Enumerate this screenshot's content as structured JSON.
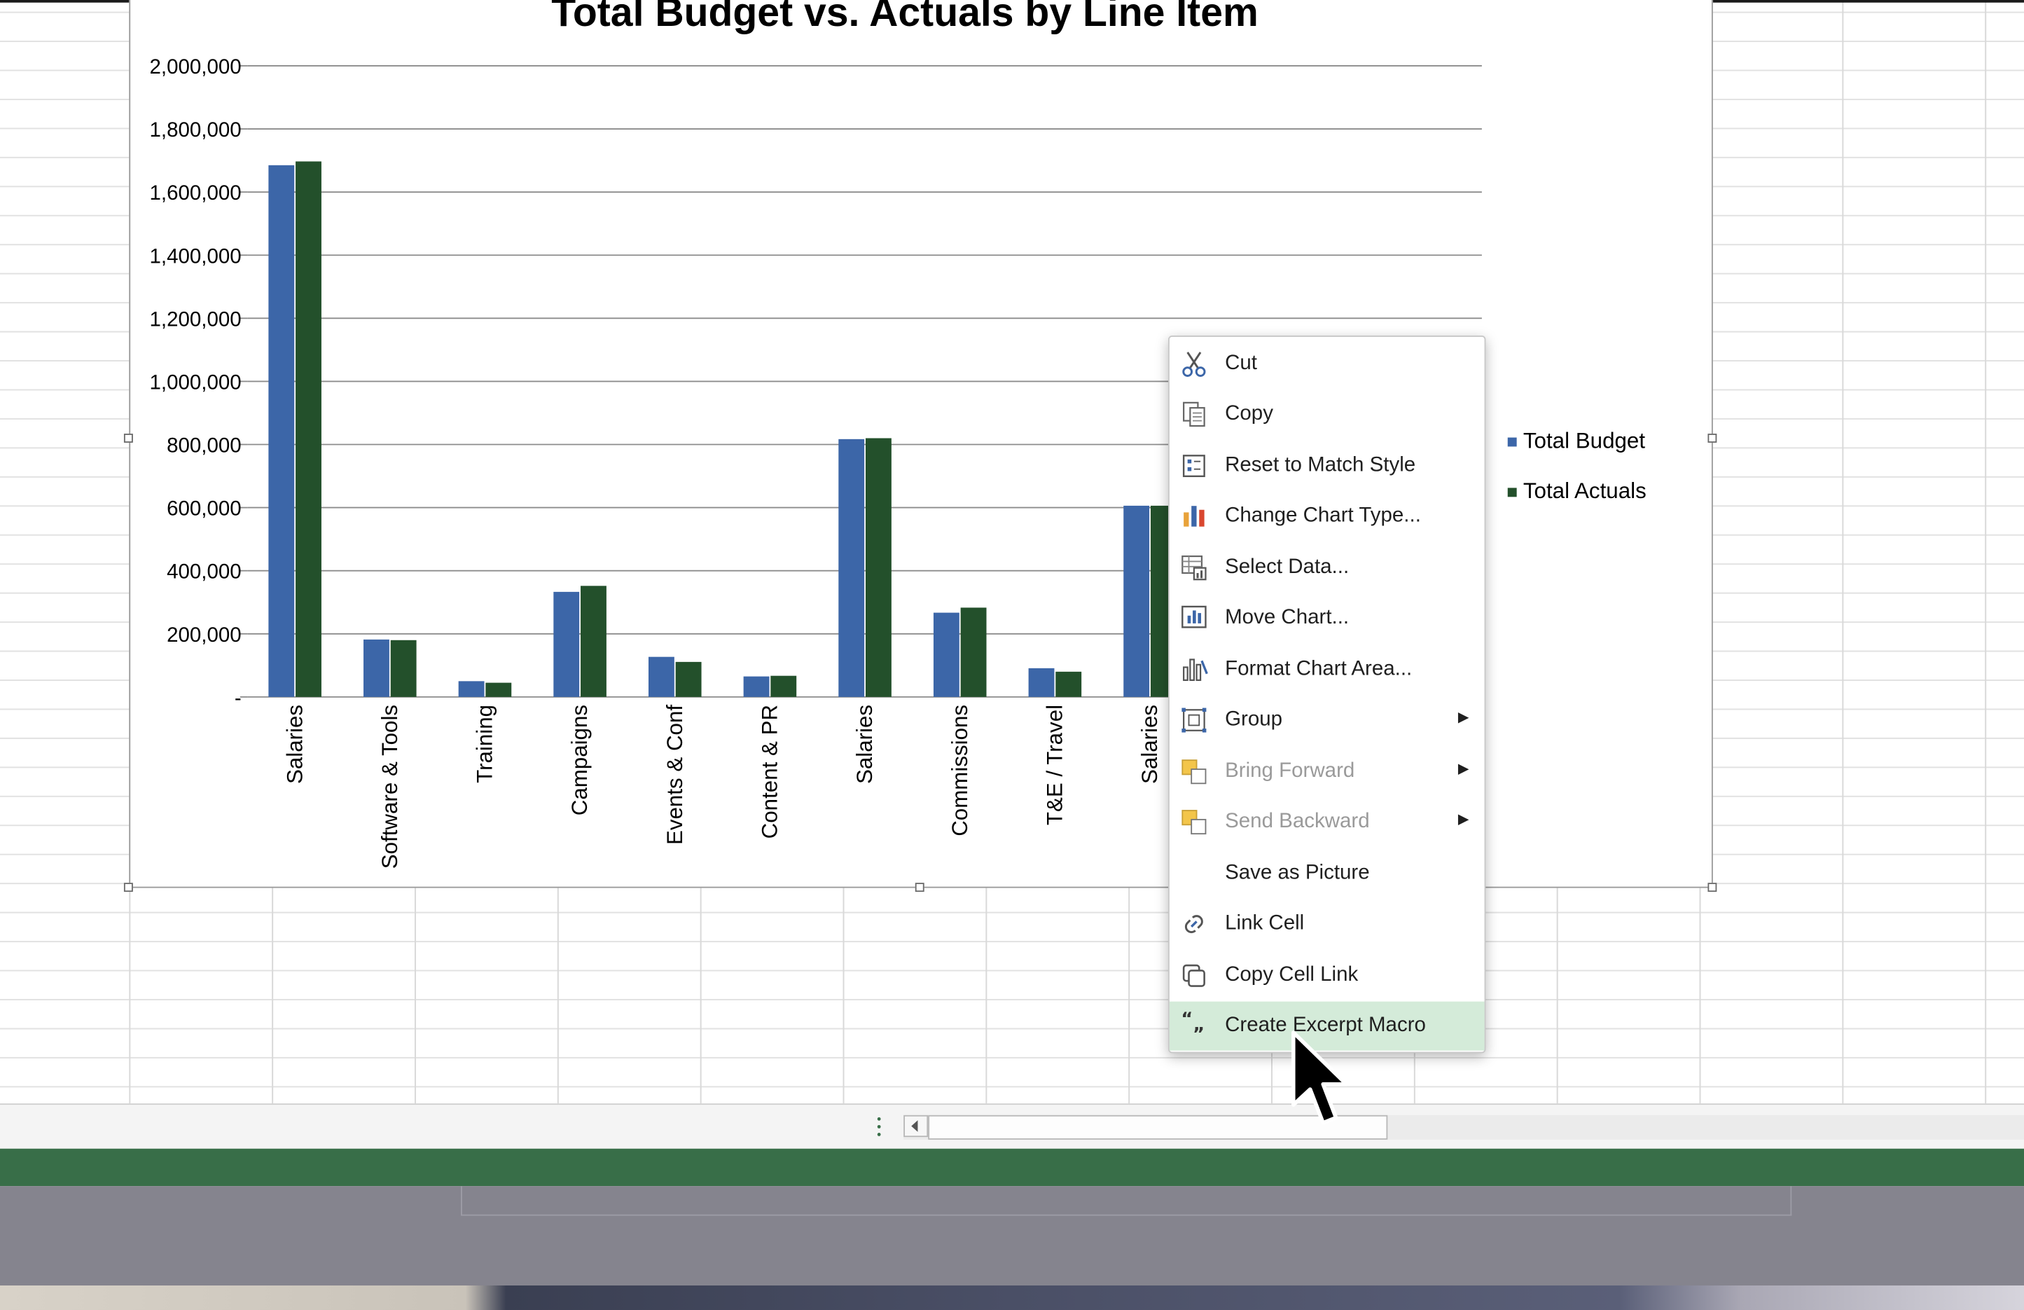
{
  "chart_data": {
    "type": "bar",
    "title": "Total Budget vs. Actuals by Line Item",
    "categories": [
      "Salaries",
      "Software & Tools",
      "Training",
      "Campaigns",
      "Events & Conf",
      "Content & PR",
      "Salaries",
      "Commissions",
      "T&E / Travel",
      "Salaries"
    ],
    "series": [
      {
        "name": "Total Budget",
        "color": "#3c66a8",
        "values": [
          1685000,
          182000,
          50000,
          333000,
          127000,
          65000,
          817000,
          267000,
          91000,
          606000
        ]
      },
      {
        "name": "Total Actuals",
        "color": "#23502b",
        "values": [
          1697000,
          180000,
          45000,
          352000,
          111000,
          67000,
          820000,
          283000,
          80000,
          606000
        ]
      }
    ],
    "ylim": [
      0,
      2000000
    ],
    "yticks": [
      0,
      200000,
      400000,
      600000,
      800000,
      1000000,
      1200000,
      1400000,
      1600000,
      1800000,
      2000000
    ],
    "ytick_labels": [
      "-",
      "200,000",
      "400,000",
      "600,000",
      "800,000",
      "1,000,000",
      "1,200,000",
      "1,400,000",
      "1,600,000",
      "1,800,000",
      "2,000,000"
    ],
    "grid": true,
    "legend_position": "right"
  },
  "context_menu": {
    "items": [
      {
        "label": "Cut",
        "icon": "scissors-icon",
        "enabled": true,
        "submenu": false
      },
      {
        "label": "Copy",
        "icon": "copy-icon",
        "enabled": true,
        "submenu": false
      },
      {
        "label": "Reset to Match Style",
        "icon": "reset-style-icon",
        "enabled": true,
        "submenu": false
      },
      {
        "label": "Change Chart Type...",
        "icon": "chart-type-icon",
        "enabled": true,
        "submenu": false
      },
      {
        "label": "Select Data...",
        "icon": "select-data-icon",
        "enabled": true,
        "submenu": false
      },
      {
        "label": "Move Chart...",
        "icon": "move-chart-icon",
        "enabled": true,
        "submenu": false
      },
      {
        "label": "Format Chart Area...",
        "icon": "format-chart-area-icon",
        "enabled": true,
        "submenu": false
      },
      {
        "label": "Group",
        "icon": "group-icon",
        "enabled": true,
        "submenu": true
      },
      {
        "label": "Bring Forward",
        "icon": "bring-forward-icon",
        "enabled": false,
        "submenu": true
      },
      {
        "label": "Send Backward",
        "icon": "send-backward-icon",
        "enabled": false,
        "submenu": true
      },
      {
        "label": "Save as Picture",
        "icon": "",
        "enabled": true,
        "submenu": false
      },
      {
        "label": "Link Cell",
        "icon": "link-icon",
        "enabled": true,
        "submenu": false
      },
      {
        "label": "Copy Cell Link",
        "icon": "copy-link-icon",
        "enabled": true,
        "submenu": false
      },
      {
        "label": "Create Excerpt Macro",
        "icon": "quote-icon",
        "enabled": true,
        "submenu": false,
        "highlighted": true
      }
    ]
  },
  "colors": {
    "status_bar": "#386e48",
    "menu_highlight": "#d4ebd9",
    "budget_bar": "#3c66a8",
    "actuals_bar": "#23502b"
  }
}
